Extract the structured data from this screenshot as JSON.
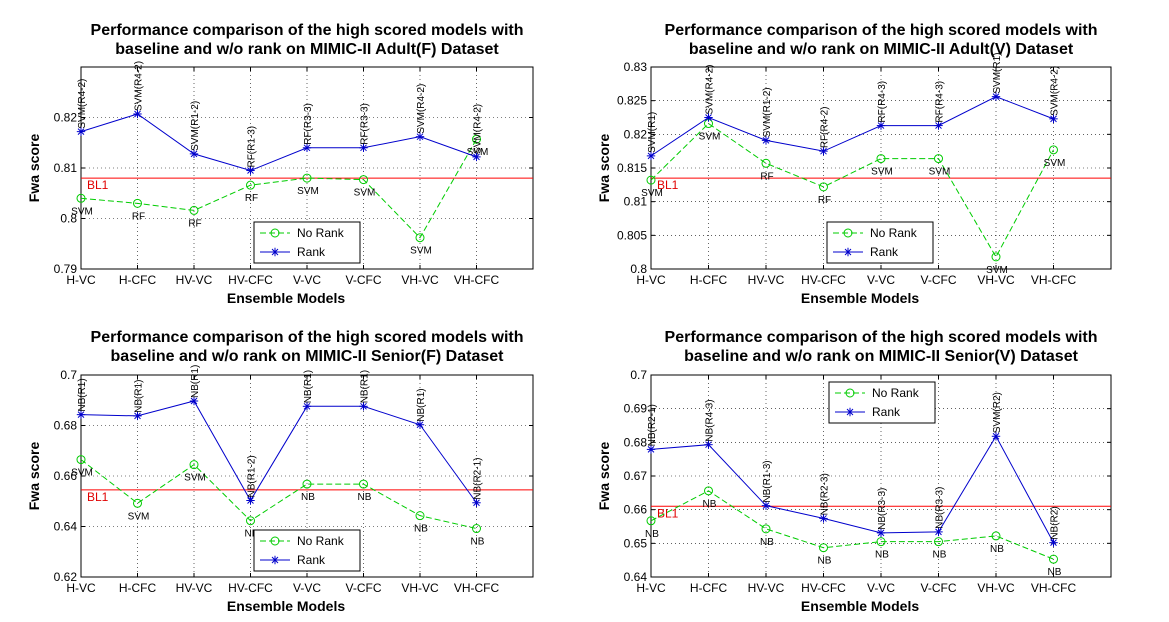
{
  "chart_data": [
    {
      "type": "line",
      "title": [
        "Performance comparison of the high scored models with",
        "baseline and w/o rank on MIMIC-II Adult(F) Dataset"
      ],
      "xlabel": "Ensemble Models",
      "ylabel": "Fwa score",
      "categories": [
        "H-VC",
        "H-CFC",
        "HV-VC",
        "HV-CFC",
        "V-VC",
        "V-CFC",
        "VH-VC",
        "VH-CFC"
      ],
      "ylim": [
        0.79,
        0.83
      ],
      "yticks": [
        "0.79",
        "0.8",
        "0.81",
        "0.82"
      ],
      "grid": true,
      "legend_position": "bottom-right",
      "baseline": {
        "label": "BL1",
        "value": 0.808,
        "color": "#ff0000"
      },
      "series": [
        {
          "name": "No Rank",
          "color": "#00cc00",
          "marker": "circle",
          "dash": true,
          "values": [
            0.804,
            0.803,
            0.8016,
            0.8066,
            0.808,
            0.8077,
            0.7962,
            0.8157
          ],
          "labels": [
            "SVM",
            "RF",
            "RF",
            "RF",
            "SVM",
            "SVM",
            "SVM",
            "SVM"
          ]
        },
        {
          "name": "Rank",
          "color": "#0000cc",
          "marker": "star",
          "dash": false,
          "values": [
            0.8172,
            0.8207,
            0.8128,
            0.8095,
            0.814,
            0.814,
            0.8162,
            0.8122
          ],
          "labels": [
            "SVM(R4-2)",
            "SVM(R4-2)",
            "SVM(R1-2)",
            "RF(R1-3)",
            "RF(R3-3)",
            "RF(R3-3)",
            "SVM(R4-2)",
            "SVM(R4-2)"
          ]
        }
      ]
    },
    {
      "type": "line",
      "title": [
        "Performance comparison of the high scored models with",
        "baseline and w/o rank on MIMIC-II Adult(V) Dataset"
      ],
      "xlabel": "Ensemble Models",
      "ylabel": "Fwa score",
      "categories": [
        "H-VC",
        "H-CFC",
        "HV-VC",
        "HV-CFC",
        "V-VC",
        "V-CFC",
        "VH-VC",
        "VH-CFC"
      ],
      "ylim": [
        0.8,
        0.83
      ],
      "yticks": [
        "0.8",
        "0.805",
        "0.81",
        "0.815",
        "0.82",
        "0.825",
        "0.83"
      ],
      "grid": true,
      "legend_position": "bottom-center",
      "baseline": {
        "label": "BL1",
        "value": 0.8135,
        "color": "#ff0000"
      },
      "series": [
        {
          "name": "No Rank",
          "color": "#00cc00",
          "marker": "circle",
          "dash": true,
          "values": [
            0.8132,
            0.8216,
            0.8157,
            0.8122,
            0.8164,
            0.8164,
            0.8018,
            0.8177
          ],
          "labels": [
            "SVM",
            "SVM",
            "RF",
            "RF",
            "SVM",
            "SVM",
            "SVM",
            "SVM"
          ]
        },
        {
          "name": "Rank",
          "color": "#0000cc",
          "marker": "star",
          "dash": false,
          "values": [
            0.8168,
            0.8225,
            0.8191,
            0.8175,
            0.8213,
            0.8213,
            0.8256,
            0.8223
          ],
          "labels": [
            "SVM(R1)",
            "SVM(R4-2)",
            "SVM(R1-2)",
            "RF(R4-2)",
            "RF(R4-3)",
            "RF(R4-3)",
            "SVM(R1)",
            "SVM(R4-2)"
          ]
        }
      ]
    },
    {
      "type": "line",
      "title": [
        "Performance comparison of the high scored models with",
        "baseline and w/o rank on MIMIC-II Senior(F) Dataset"
      ],
      "xlabel": "Ensemble Models",
      "ylabel": "Fwa score",
      "categories": [
        "H-VC",
        "H-CFC",
        "HV-VC",
        "HV-CFC",
        "V-VC",
        "V-CFC",
        "VH-VC",
        "VH-CFC"
      ],
      "ylim": [
        0.62,
        0.7
      ],
      "yticks": [
        "0.62",
        "0.64",
        "0.66",
        "0.68",
        "0.7"
      ],
      "grid": true,
      "legend_position": "bottom-center",
      "baseline": {
        "label": "BL1",
        "value": 0.6545,
        "color": "#ff0000"
      },
      "series": [
        {
          "name": "No Rank",
          "color": "#00cc00",
          "marker": "circle",
          "dash": true,
          "values": [
            0.6665,
            0.6492,
            0.6645,
            0.6423,
            0.6568,
            0.6568,
            0.6443,
            0.6392
          ],
          "labels": [
            "SVM",
            "SVM",
            "SVM",
            "NB",
            "NB",
            "NB",
            "NB",
            "NB"
          ]
        },
        {
          "name": "Rank",
          "color": "#0000cc",
          "marker": "star",
          "dash": false,
          "values": [
            0.6843,
            0.6838,
            0.6897,
            0.6503,
            0.6876,
            0.6876,
            0.6803,
            0.6494
          ],
          "labels": [
            "NB(R1)",
            "NB(R1)",
            "NB(R1)",
            "NB(R1-2)",
            "NB(R1)",
            "NB(R1)",
            "NB(R1)",
            "NB(R2-1)"
          ]
        }
      ]
    },
    {
      "type": "line",
      "title": [
        "Performance comparison of the high scored models with",
        "baseline and w/o rank on MIMIC-II Senior(V) Dataset"
      ],
      "xlabel": "Ensemble Models",
      "ylabel": "Fwa score",
      "categories": [
        "H-VC",
        "H-CFC",
        "HV-VC",
        "HV-CFC",
        "V-VC",
        "V-CFC",
        "VH-VC",
        "VH-CFC"
      ],
      "ylim": [
        0.64,
        0.7
      ],
      "yticks": [
        "0.64",
        "0.65",
        "0.66",
        "0.67",
        "0.68",
        "0.69",
        "0.7"
      ],
      "grid": true,
      "legend_position": "top-center",
      "baseline": {
        "label": "BL1",
        "value": 0.661,
        "color": "#ff0000"
      },
      "series": [
        {
          "name": "No Rank",
          "color": "#00cc00",
          "marker": "circle",
          "dash": true,
          "values": [
            0.6567,
            0.6656,
            0.6543,
            0.6487,
            0.6505,
            0.6505,
            0.6522,
            0.6453
          ],
          "labels": [
            "NB",
            "NB",
            "NB",
            "NB",
            "NB",
            "NB",
            "NB",
            "NB"
          ]
        },
        {
          "name": "Rank",
          "color": "#0000cc",
          "marker": "star",
          "dash": false,
          "values": [
            0.6779,
            0.6793,
            0.6612,
            0.6574,
            0.6531,
            0.6534,
            0.6818,
            0.6502
          ],
          "labels": [
            "NB(R2-1)",
            "NB(R4-3)",
            "NB(R1-3)",
            "NB(R2-3)",
            "NB(R3-3)",
            "NB(R3-3)",
            "SVM(R2)",
            "NB(R2)"
          ]
        }
      ]
    }
  ]
}
